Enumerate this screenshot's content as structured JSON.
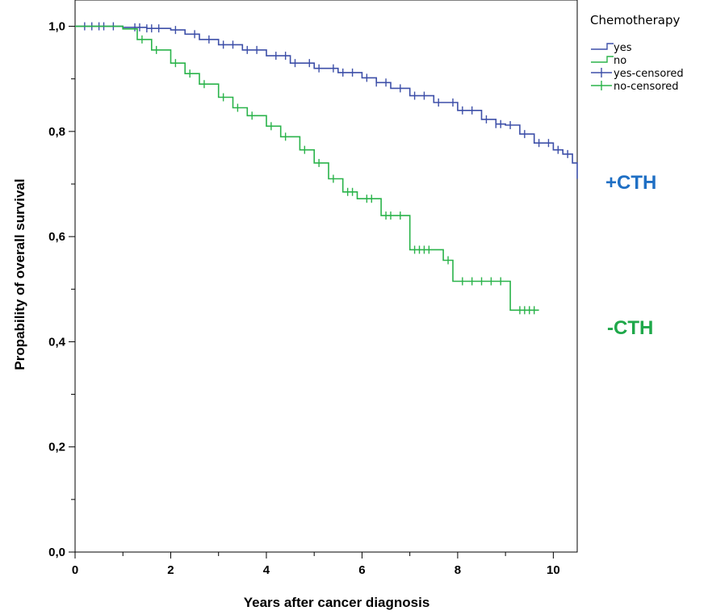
{
  "chart_data": {
    "type": "line",
    "subtype": "kaplan-meier step plot",
    "title": "",
    "xlabel": "Years after cancer diagnosis",
    "ylabel": "Propability of overall survival",
    "xlim": [
      0,
      10.5
    ],
    "ylim": [
      0,
      1.05
    ],
    "x_ticks": [
      0,
      2,
      4,
      6,
      8,
      10
    ],
    "x_tick_labels": [
      "0",
      "2",
      "4",
      "6",
      "8",
      "10"
    ],
    "y_ticks": [
      0,
      0.2,
      0.4,
      0.6,
      0.8,
      1.0
    ],
    "y_tick_labels": [
      "0,0",
      "0,2",
      "0,4",
      "0,6",
      "0,8",
      "1,0"
    ],
    "grid": false,
    "legend": {
      "title": "Chemotherapy",
      "position": "top-right",
      "entries": [
        {
          "label": "yes",
          "kind": "line",
          "color": "#3d4fa8"
        },
        {
          "label": "no",
          "kind": "line",
          "color": "#2ab34a"
        },
        {
          "label": "yes-censored",
          "kind": "censor",
          "color": "#3d4fa8"
        },
        {
          "label": "no-censored",
          "kind": "censor",
          "color": "#2ab34a"
        }
      ]
    },
    "annotations": [
      {
        "text": "+CTH",
        "color": "#1f6fc4"
      },
      {
        "text": "-CTH",
        "color": "#1fa84a"
      }
    ],
    "series": [
      {
        "name": "yes",
        "color": "#3d4fa8",
        "x": [
          0,
          1.0,
          1.5,
          2.0,
          2.3,
          2.6,
          3.0,
          3.5,
          4.0,
          4.5,
          5.0,
          5.5,
          6.0,
          6.3,
          6.6,
          7.0,
          7.5,
          8.0,
          8.5,
          8.8,
          9.0,
          9.3,
          9.6,
          10.0,
          10.2,
          10.4,
          10.5
        ],
        "y": [
          1.0,
          0.998,
          0.996,
          0.993,
          0.985,
          0.975,
          0.965,
          0.955,
          0.944,
          0.93,
          0.92,
          0.912,
          0.902,
          0.893,
          0.882,
          0.868,
          0.855,
          0.84,
          0.823,
          0.814,
          0.812,
          0.795,
          0.778,
          0.765,
          0.757,
          0.74,
          0.71
        ],
        "censored_x": [
          0.2,
          0.35,
          0.5,
          0.6,
          0.8,
          1.25,
          1.35,
          1.5,
          1.6,
          1.75,
          2.1,
          2.5,
          2.8,
          3.1,
          3.3,
          3.6,
          3.8,
          4.2,
          4.4,
          4.6,
          4.9,
          5.1,
          5.4,
          5.6,
          5.8,
          6.1,
          6.3,
          6.5,
          6.8,
          7.1,
          7.3,
          7.6,
          7.9,
          8.1,
          8.3,
          8.6,
          8.8,
          8.9,
          9.1,
          9.4,
          9.7,
          9.9,
          10.1,
          10.3
        ]
      },
      {
        "name": "no",
        "color": "#2ab34a",
        "x": [
          0,
          1.0,
          1.3,
          1.6,
          2.0,
          2.3,
          2.6,
          3.0,
          3.3,
          3.6,
          4.0,
          4.3,
          4.7,
          5.0,
          5.3,
          5.6,
          5.9,
          6.0,
          6.4,
          6.9,
          7.0,
          7.5,
          7.7,
          7.9,
          8.0,
          9.1,
          9.7
        ],
        "y": [
          1.0,
          0.995,
          0.975,
          0.955,
          0.93,
          0.91,
          0.89,
          0.865,
          0.845,
          0.83,
          0.81,
          0.79,
          0.765,
          0.74,
          0.71,
          0.685,
          0.672,
          0.672,
          0.64,
          0.64,
          0.575,
          0.575,
          0.555,
          0.515,
          0.515,
          0.46,
          0.46
        ],
        "censored_x": [
          1.4,
          1.7,
          2.1,
          2.4,
          2.7,
          3.1,
          3.4,
          3.7,
          4.1,
          4.4,
          4.8,
          5.1,
          5.4,
          5.7,
          5.8,
          6.1,
          6.2,
          6.5,
          6.6,
          6.8,
          7.1,
          7.2,
          7.3,
          7.4,
          7.8,
          8.1,
          8.3,
          8.5,
          8.7,
          8.9,
          9.3,
          9.4,
          9.5,
          9.6
        ]
      }
    ]
  }
}
